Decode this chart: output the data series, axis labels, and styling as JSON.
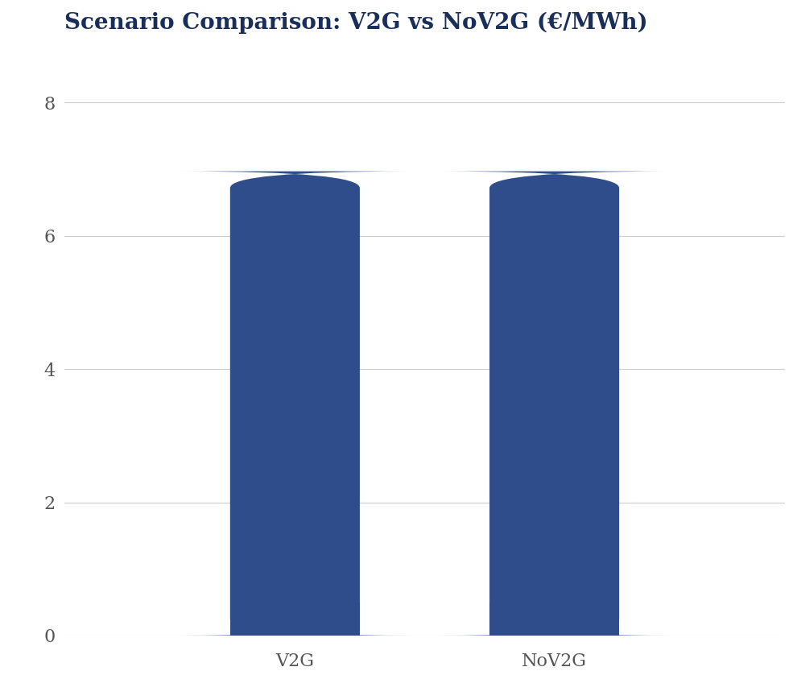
{
  "title": "Scenario Comparison: V2G vs NoV2G (€/MWh)",
  "categories": [
    "V2G",
    "NoV2G"
  ],
  "values": [
    6.97,
    6.97
  ],
  "bar_color": "#2E4D8A",
  "background_color": "#ffffff",
  "ylim": [
    0,
    8.8
  ],
  "yticks": [
    0,
    2,
    4,
    6,
    8
  ],
  "title_fontsize": 20,
  "tick_fontsize": 16,
  "title_color": "#1a2e5a",
  "tick_color": "#555555",
  "grid_color": "#cccccc",
  "bar_width": 0.18,
  "x_positions": [
    0.32,
    0.68
  ],
  "rounding_size": 0.25
}
